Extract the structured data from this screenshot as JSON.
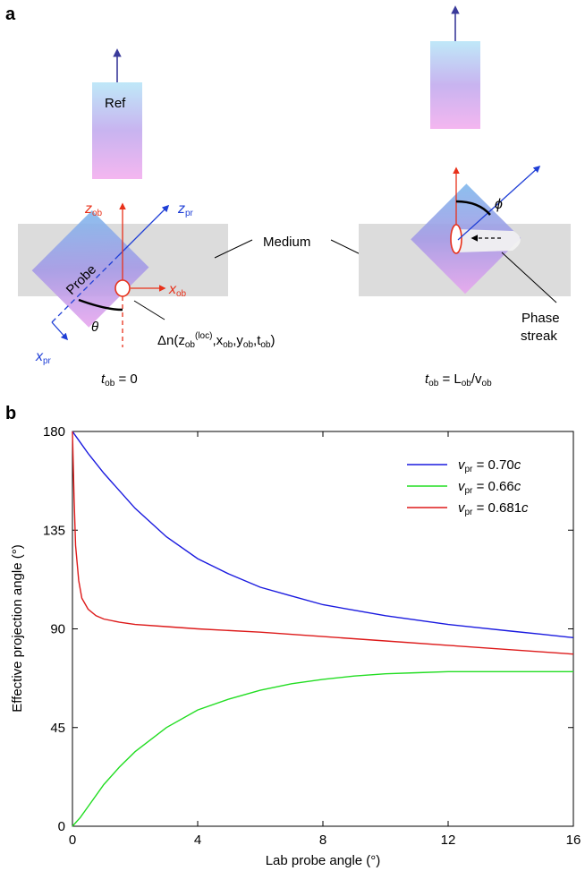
{
  "panel_a": {
    "label": "a",
    "ref_label": "Ref",
    "probe_label": "Probe",
    "medium_label": "Medium",
    "z_ob": {
      "main": "z",
      "sub": "ob"
    },
    "x_ob": {
      "main": "x",
      "sub": "ob"
    },
    "z_pr": {
      "main": "z",
      "sub": "pr"
    },
    "x_pr": {
      "main": "x",
      "sub": "pr"
    },
    "theta": "θ",
    "phi": "ϕ",
    "delta_n": {
      "prefix": "Δn(z",
      "sub1": "ob",
      "sup1": "(loc)",
      "part2": ",x",
      "sub2": "ob",
      "part3": ",y",
      "sub3": "ob",
      "part4": ",t",
      "sub4": "ob",
      "suffix": ")"
    },
    "time_left": {
      "main": "t",
      "sub": "ob",
      "rest": " = 0"
    },
    "time_right": {
      "main": "t",
      "sub": "ob",
      "mid": " = L",
      "sub2": "ob",
      "slash": "/v",
      "sub3": "ob"
    },
    "phase_streak_line1": "Phase",
    "phase_streak_line2": "streak",
    "colors": {
      "red": "#e8311a",
      "blue": "#1f3fd6",
      "grey": "#dcdcdc"
    }
  },
  "panel_b": {
    "label": "b"
  },
  "chart_data": {
    "type": "line",
    "xlabel": "Lab probe angle (°)",
    "ylabel": "Effective projection angle (°)",
    "xlim": [
      0,
      16
    ],
    "ylim": [
      0,
      180
    ],
    "xticks": [
      "0",
      "4",
      "8",
      "12",
      "16"
    ],
    "yticks": [
      "0",
      "45",
      "90",
      "135",
      "180"
    ],
    "legend_position": "top-right",
    "series": [
      {
        "name": "v_pr = 0.70c",
        "legend": {
          "v": "v",
          "sub": "pr",
          "eq": " = 0.70",
          "c": "c"
        },
        "color": "#1a1adf",
        "x": [
          0,
          0.25,
          0.5,
          1,
          1.5,
          2,
          3,
          4,
          5,
          6,
          7,
          8,
          9,
          10,
          11,
          12,
          13,
          14,
          15,
          16
        ],
        "y": [
          180,
          175,
          170,
          161,
          153,
          145,
          132,
          122,
          115,
          109,
          105,
          101,
          98.5,
          96,
          94,
          92,
          90.5,
          89,
          87.5,
          86
        ]
      },
      {
        "name": "v_pr = 0.66c",
        "legend": {
          "v": "v",
          "sub": "pr",
          "eq": " = 0.66",
          "c": "c"
        },
        "color": "#22dd22",
        "x": [
          0,
          0.25,
          0.5,
          1,
          1.5,
          2,
          3,
          4,
          5,
          6,
          7,
          8,
          9,
          10,
          11,
          12,
          13,
          14,
          15,
          16
        ],
        "y": [
          0,
          4,
          9,
          19,
          27,
          34,
          45,
          53,
          58,
          62,
          65,
          67,
          68.5,
          69.5,
          70,
          70.5,
          70.5,
          70.5,
          70.5,
          70.5
        ]
      },
      {
        "name": "v_pr = 0.681c",
        "legend": {
          "v": "v",
          "sub": "pr",
          "eq": " = 0.681",
          "c": "c"
        },
        "color": "#dd1a1a",
        "x": [
          0,
          0.05,
          0.1,
          0.2,
          0.3,
          0.5,
          0.75,
          1,
          1.5,
          2,
          3,
          4,
          6,
          8,
          10,
          12,
          14,
          16
        ],
        "y": [
          180,
          150,
          128,
          112,
          104,
          99,
          96,
          94.5,
          93,
          92,
          91,
          90,
          88.5,
          86.5,
          84.5,
          82.5,
          80.5,
          78.5
        ]
      }
    ]
  }
}
